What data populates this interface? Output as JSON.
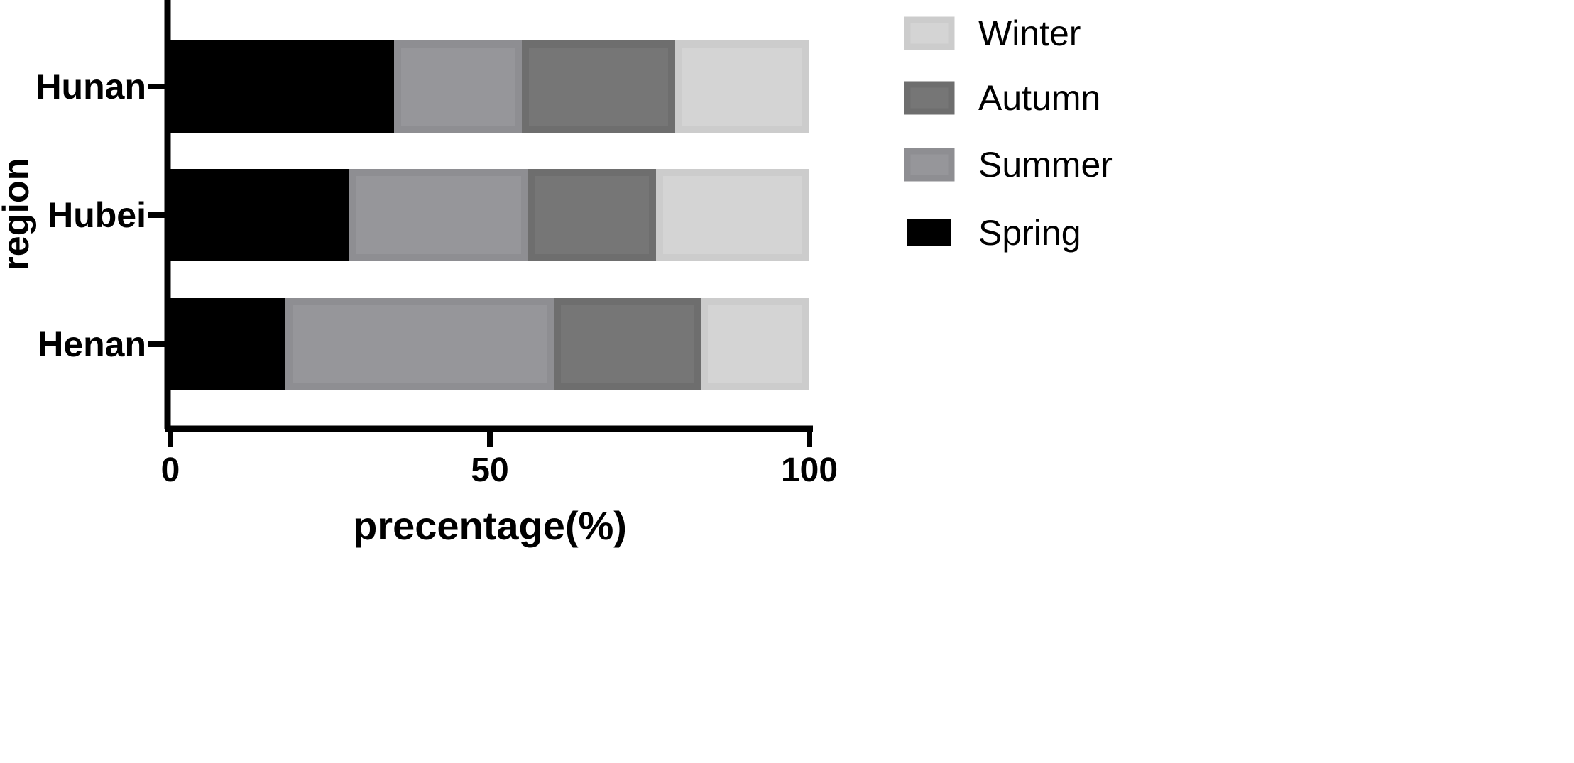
{
  "chart_data": {
    "type": "bar",
    "orientation": "horizontal",
    "stacked": true,
    "xlabel": "precentage(%)",
    "ylabel": "region",
    "xlim": [
      0,
      100
    ],
    "x_ticks": [
      0,
      50,
      100
    ],
    "categories": [
      "Hunan",
      "Hubei",
      "Henan"
    ],
    "series": [
      {
        "name": "Spring",
        "color": "#000000",
        "values": [
          35,
          28,
          18
        ]
      },
      {
        "name": "Summer",
        "color": "#8e8e92",
        "values": [
          20,
          28,
          42
        ]
      },
      {
        "name": "Autumn",
        "color": "#6e6e6e",
        "values": [
          24,
          20,
          23
        ]
      },
      {
        "name": "Winter",
        "color": "#cccccc",
        "values": [
          21,
          24,
          17
        ]
      }
    ],
    "legend_order": [
      "Winter",
      "Autumn",
      "Summer",
      "Spring"
    ],
    "legend_position": "right",
    "grid": false
  }
}
